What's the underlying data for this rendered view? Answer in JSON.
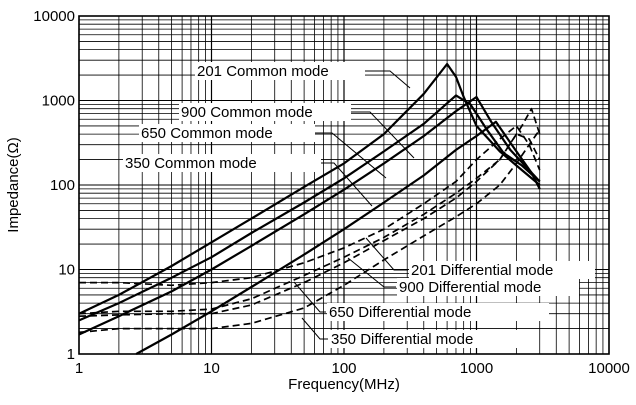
{
  "chart_data": {
    "type": "line",
    "title": "",
    "xlabel": "Frequency(MHz)",
    "ylabel": "Impedance(Ω)",
    "x_scale": "log",
    "y_scale": "log",
    "xlim": [
      1,
      10000
    ],
    "ylim": [
      1,
      10000
    ],
    "x_ticks": [
      "1",
      "10",
      "100",
      "1000",
      "10000"
    ],
    "y_ticks": [
      "1",
      "10",
      "100",
      "1000",
      "10000"
    ],
    "grid": true,
    "legend": "none",
    "series": [
      {
        "name": "201 Common mode",
        "style": "solid",
        "x": [
          1,
          2,
          5,
          10,
          20,
          50,
          100,
          200,
          400,
          600,
          700,
          800,
          1000,
          1500,
          2000,
          3000
        ],
        "y": [
          3,
          5,
          11,
          21,
          40,
          95,
          180,
          400,
          1200,
          2700,
          1900,
          1100,
          500,
          250,
          170,
          100
        ]
      },
      {
        "name": "900 Common mode",
        "style": "solid",
        "x": [
          1,
          2,
          5,
          10,
          20,
          50,
          100,
          200,
          400,
          700,
          900,
          1200,
          1600,
          2200,
          3000
        ],
        "y": [
          2.5,
          4,
          8,
          14,
          27,
          62,
          120,
          250,
          530,
          1150,
          900,
          450,
          240,
          170,
          110
        ]
      },
      {
        "name": "650 Common mode",
        "style": "solid",
        "x": [
          1,
          2,
          5,
          10,
          20,
          50,
          100,
          200,
          400,
          700,
          1000,
          1300,
          1800,
          2500,
          3000
        ],
        "y": [
          1.7,
          2.8,
          5.5,
          10,
          19,
          45,
          88,
          180,
          380,
          750,
          1100,
          550,
          260,
          150,
          110
        ]
      },
      {
        "name": "350 Common mode",
        "style": "solid",
        "x": [
          2.7,
          5,
          10,
          20,
          50,
          100,
          200,
          400,
          700,
          1000,
          1400,
          2000,
          2600,
          3000
        ],
        "y": [
          1,
          1.7,
          3.2,
          6.2,
          15,
          30,
          62,
          130,
          260,
          380,
          560,
          250,
          140,
          90
        ]
      },
      {
        "name": "201 Differential mode",
        "style": "dashed",
        "x": [
          1,
          2,
          5,
          10,
          20,
          50,
          100,
          200,
          400,
          700,
          1000,
          1500,
          2000,
          2500,
          3000
        ],
        "y": [
          7,
          7,
          6.5,
          7,
          8,
          12,
          18,
          30,
          60,
          110,
          200,
          350,
          500,
          300,
          150
        ]
      },
      {
        "name": "900 Differential mode",
        "style": "dashed",
        "x": [
          1,
          2,
          5,
          10,
          20,
          50,
          100,
          200,
          400,
          700,
          1000,
          1500,
          2200,
          2600,
          3000
        ],
        "y": [
          3,
          3.2,
          3.2,
          3.4,
          4.5,
          8.5,
          14,
          24,
          45,
          80,
          120,
          200,
          500,
          800,
          400
        ]
      },
      {
        "name": "650 Differential mode",
        "style": "dashed",
        "x": [
          1,
          2,
          5,
          10,
          20,
          50,
          100,
          200,
          400,
          700,
          1000,
          1500,
          2000,
          2500,
          3000
        ],
        "y": [
          2.8,
          2.9,
          3,
          3,
          3.8,
          7,
          12,
          22,
          40,
          70,
          110,
          200,
          400,
          350,
          200
        ]
      },
      {
        "name": "350 Differential mode",
        "style": "dashed",
        "x": [
          1,
          2,
          5,
          10,
          20,
          50,
          100,
          200,
          400,
          700,
          1000,
          1500,
          2000,
          2500,
          3000
        ],
        "y": [
          1.8,
          2,
          2,
          2,
          2.3,
          3.5,
          6.5,
          13,
          25,
          42,
          60,
          100,
          180,
          300,
          450
        ]
      }
    ],
    "annotations": [
      "201 Common mode",
      "900 Common mode",
      "650 Common mode",
      "350 Common mode",
      "201 Differential mode",
      "900 Differential mode",
      "650 Differential mode",
      "350 Differential mode"
    ]
  },
  "colors": {
    "line": "#000000",
    "grid": "#000000",
    "background": "#ffffff"
  }
}
